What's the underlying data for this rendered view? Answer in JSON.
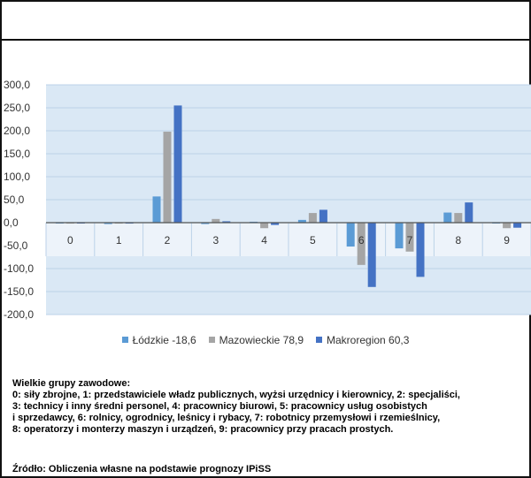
{
  "chart_data": {
    "type": "bar",
    "categories": [
      "0",
      "1",
      "2",
      "3",
      "4",
      "5",
      "6",
      "7",
      "8",
      "9"
    ],
    "series": [
      {
        "name": "Łódzkie -18,6",
        "values": [
          -1,
          -3,
          57,
          -3,
          2,
          6,
          -52,
          -56,
          22,
          0
        ]
      },
      {
        "name": "Mazowieckie 78,9",
        "values": [
          -2,
          -2,
          198,
          8,
          -12,
          21,
          -92,
          -63,
          21,
          -12
        ]
      },
      {
        "name": "Makroregion 60,3",
        "values": [
          -1,
          -2,
          255,
          3,
          -5,
          28,
          -140,
          -118,
          44,
          -11
        ]
      }
    ],
    "yticks": [
      "300,0",
      "250,0",
      "200,0",
      "150,0",
      "100,0",
      "50,0",
      "0,0",
      "-50,0",
      "-100,0",
      "-150,0",
      "-200,0"
    ],
    "ylim": [
      -200,
      300
    ],
    "grid": true,
    "legend_position": "bottom",
    "colors": {
      "series": [
        "#5b9bd5",
        "#a5a5a5",
        "#4472c4"
      ],
      "plot_background": "#dae8f5",
      "category_label_background": "#edf3fa",
      "grid": "#bcd2e8",
      "axis_text": "#333333"
    }
  },
  "notes": {
    "lines": [
      "Wielkie grupy zawodowe:",
      "0: siły zbrojne, 1: przedstawiciele władz publicznych, wyżsi urzędnicy i kierownicy, 2: specjaliści,",
      "3: technicy i inny średni personel, 4: pracownicy biurowi, 5: pracownicy usług osobistych",
      "i sprzedawcy, 6: rolnicy, ogrodnicy, leśnicy i rybacy, 7: robotnicy przemysłowi i rzemieślnicy,",
      "8: operatorzy i monterzy maszyn i urządzeń, 9: pracownicy przy pracach prostych."
    ],
    "source": "Źródło: Obliczenia własne na podstawie prognozy IPiSS"
  }
}
